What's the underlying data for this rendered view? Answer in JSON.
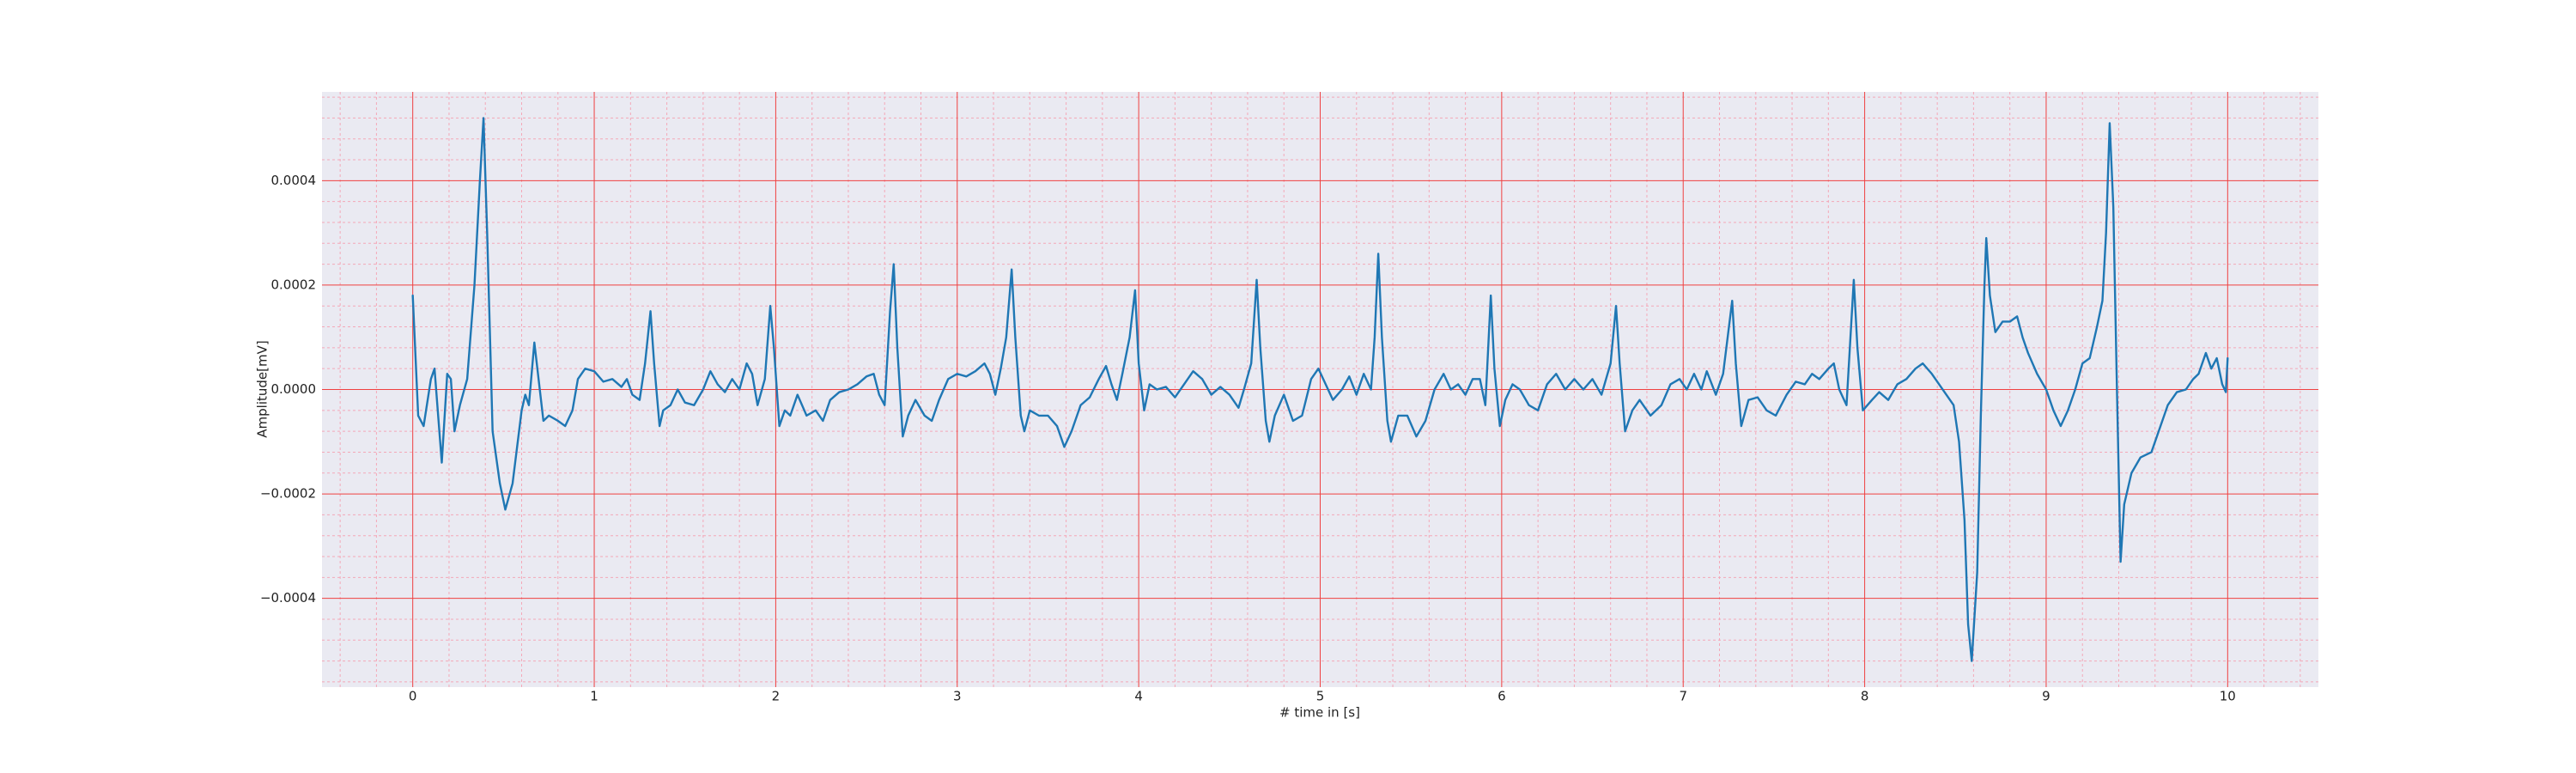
{
  "chart_data": {
    "type": "line",
    "xlabel": "# time in [s]",
    "ylabel": "Amplitude[mV]",
    "color": "#1f77b4",
    "background": "#eaeaf2",
    "grid_color": "#f04040",
    "minor_grid_color": "#f4a8b8",
    "grid": true,
    "minor_grid": true,
    "xlim": [
      -0.5,
      10.5
    ],
    "xticks": [
      0,
      1,
      2,
      3,
      4,
      5,
      6,
      7,
      8,
      9,
      10
    ],
    "ylim": [
      -0.00057,
      0.00057
    ],
    "yticks": [
      {
        "value": -0.0004,
        "label": "−0.0004"
      },
      {
        "value": -0.0002,
        "label": "−0.0002"
      },
      {
        "value": 0,
        "label": "0.0000"
      },
      0.0002,
      0.0004
    ],
    "x": [
      0,
      0.03,
      0.06,
      0.1,
      0.12,
      0.14,
      0.16,
      0.19,
      0.21,
      0.23,
      0.26,
      0.3,
      0.34,
      0.37,
      0.39,
      0.41,
      0.44,
      0.48,
      0.51,
      0.55,
      0.6,
      0.62,
      0.64,
      0.67,
      0.69,
      0.72,
      0.75,
      0.8,
      0.84,
      0.88,
      0.91,
      0.95,
      1,
      1.05,
      1.1,
      1.15,
      1.18,
      1.21,
      1.25,
      1.28,
      1.31,
      1.33,
      1.36,
      1.38,
      1.42,
      1.46,
      1.5,
      1.55,
      1.6,
      1.64,
      1.68,
      1.72,
      1.76,
      1.8,
      1.84,
      1.87,
      1.9,
      1.94,
      1.97,
      1.99,
      2.02,
      2.05,
      2.08,
      2.12,
      2.17,
      2.22,
      2.26,
      2.3,
      2.35,
      2.4,
      2.45,
      2.5,
      2.54,
      2.57,
      2.6,
      2.63,
      2.65,
      2.67,
      2.7,
      2.73,
      2.77,
      2.82,
      2.86,
      2.9,
      2.95,
      3,
      3.05,
      3.1,
      3.15,
      3.18,
      3.21,
      3.24,
      3.27,
      3.3,
      3.32,
      3.35,
      3.37,
      3.4,
      3.45,
      3.5,
      3.55,
      3.59,
      3.63,
      3.68,
      3.73,
      3.78,
      3.82,
      3.85,
      3.88,
      3.91,
      3.95,
      3.98,
      4,
      4.03,
      4.06,
      4.1,
      4.15,
      4.2,
      4.25,
      4.3,
      4.35,
      4.4,
      4.45,
      4.5,
      4.55,
      4.58,
      4.62,
      4.65,
      4.67,
      4.7,
      4.72,
      4.75,
      4.8,
      4.85,
      4.9,
      4.95,
      4.99,
      5.03,
      5.07,
      5.12,
      5.16,
      5.2,
      5.24,
      5.28,
      5.3,
      5.32,
      5.34,
      5.37,
      5.39,
      5.43,
      5.48,
      5.53,
      5.58,
      5.63,
      5.68,
      5.72,
      5.76,
      5.8,
      5.84,
      5.88,
      5.91,
      5.94,
      5.96,
      5.99,
      6.02,
      6.06,
      6.1,
      6.15,
      6.2,
      6.25,
      6.3,
      6.35,
      6.4,
      6.45,
      6.5,
      6.55,
      6.6,
      6.63,
      6.65,
      6.68,
      6.72,
      6.76,
      6.82,
      6.88,
      6.93,
      6.98,
      7.02,
      7.06,
      7.1,
      7.13,
      7.18,
      7.22,
      7.27,
      7.29,
      7.32,
      7.36,
      7.41,
      7.46,
      7.51,
      7.57,
      7.62,
      7.67,
      7.71,
      7.75,
      7.8,
      7.83,
      7.86,
      7.9,
      7.94,
      7.96,
      7.99,
      8.04,
      8.08,
      8.13,
      8.18,
      8.23,
      8.28,
      8.32,
      8.37,
      8.41,
      8.45,
      8.49,
      8.52,
      8.55,
      8.57,
      8.59,
      8.62,
      8.64,
      8.66,
      8.67,
      8.69,
      8.72,
      8.76,
      8.8,
      8.84,
      8.87,
      8.9,
      8.95,
      9,
      9.04,
      9.08,
      9.12,
      9.16,
      9.2,
      9.24,
      9.28,
      9.31,
      9.33,
      9.35,
      9.37,
      9.39,
      9.41,
      9.43,
      9.47,
      9.52,
      9.58,
      9.62,
      9.67,
      9.72,
      9.77,
      9.81,
      9.84,
      9.88,
      9.91,
      9.94,
      9.97,
      9.99,
      10
    ],
    "values": [
      0.00018,
      -5e-05,
      -7e-05,
      2e-05,
      4e-05,
      -5e-05,
      -0.00014,
      3e-05,
      2e-05,
      -8e-05,
      -3e-05,
      2e-05,
      0.0002,
      0.0004,
      0.00052,
      0.0003,
      -8e-05,
      -0.00018,
      -0.00023,
      -0.00018,
      -4e-05,
      -1e-05,
      -3e-05,
      9e-05,
      3e-05,
      -6e-05,
      -5e-05,
      -6e-05,
      -7e-05,
      -4e-05,
      2e-05,
      4e-05,
      3.5e-05,
      1.5e-05,
      2e-05,
      5e-06,
      2e-05,
      -1e-05,
      -2e-05,
      5e-05,
      0.00015,
      5e-05,
      -7e-05,
      -4e-05,
      -3e-05,
      0,
      -2.5e-05,
      -3e-05,
      0,
      3.5e-05,
      1e-05,
      -5e-06,
      2e-05,
      0,
      5e-05,
      3e-05,
      -3e-05,
      2e-05,
      0.00016,
      8e-05,
      -7e-05,
      -4e-05,
      -5e-05,
      -1e-05,
      -5e-05,
      -4e-05,
      -6e-05,
      -2e-05,
      -5e-06,
      0,
      1e-05,
      2.5e-05,
      3e-05,
      -1e-05,
      -3e-05,
      0.00015,
      0.00024,
      8e-05,
      -9e-05,
      -5e-05,
      -2e-05,
      -5e-05,
      -6e-05,
      -2e-05,
      2e-05,
      3e-05,
      2.5e-05,
      3.5e-05,
      5e-05,
      3e-05,
      -1e-05,
      4e-05,
      0.0001,
      0.00023,
      0.0001,
      -5e-05,
      -8e-05,
      -4e-05,
      -5e-05,
      -5e-05,
      -7e-05,
      -0.00011,
      -8e-05,
      -3e-05,
      -1.5e-05,
      2e-05,
      4.5e-05,
      1e-05,
      -2e-05,
      3e-05,
      0.0001,
      0.00019,
      5e-05,
      -4e-05,
      1e-05,
      0,
      5e-06,
      -1.5e-05,
      1e-05,
      3.5e-05,
      2e-05,
      -1e-05,
      5e-06,
      -1e-05,
      -3.5e-05,
      0,
      5e-05,
      0.00021,
      8e-05,
      -6e-05,
      -0.0001,
      -5e-05,
      -1e-05,
      -6e-05,
      -5e-05,
      2e-05,
      4e-05,
      1e-05,
      -2e-05,
      0,
      2.5e-05,
      -1e-05,
      3e-05,
      0,
      0.0001,
      0.00026,
      0.0001,
      -6e-05,
      -0.0001,
      -5e-05,
      -5e-05,
      -9e-05,
      -6e-05,
      0,
      3e-05,
      0,
      1e-05,
      -1e-05,
      2e-05,
      2e-05,
      -3e-05,
      0.00018,
      4e-05,
      -7e-05,
      -2e-05,
      1e-05,
      0,
      -3e-05,
      -4e-05,
      1e-05,
      3e-05,
      0,
      2e-05,
      0,
      2e-05,
      -1e-05,
      5e-05,
      0.00016,
      5e-05,
      -8e-05,
      -4e-05,
      -2e-05,
      -5e-05,
      -3e-05,
      1e-05,
      2e-05,
      0,
      3e-05,
      0,
      3.5e-05,
      -1e-05,
      3e-05,
      0.00017,
      5e-05,
      -7e-05,
      -2e-05,
      -1.5e-05,
      -4e-05,
      -5e-05,
      -1e-05,
      1.5e-05,
      1e-05,
      3e-05,
      2e-05,
      4e-05,
      5e-05,
      0,
      -3e-05,
      0.00021,
      8e-05,
      -4e-05,
      -2e-05,
      -5e-06,
      -2e-05,
      1e-05,
      2e-05,
      4e-05,
      5e-05,
      3e-05,
      1e-05,
      -1e-05,
      -3e-05,
      -0.0001,
      -0.00025,
      -0.00045,
      -0.00052,
      -0.00035,
      -5e-05,
      0.0002,
      0.00029,
      0.00018,
      0.00011,
      0.00013,
      0.00013,
      0.00014,
      0.0001,
      7e-05,
      3e-05,
      0,
      -4e-05,
      -7e-05,
      -4e-05,
      0,
      5e-05,
      6e-05,
      0.00012,
      0.00017,
      0.0003,
      0.00051,
      0.00035,
      0,
      -0.00033,
      -0.00022,
      -0.00016,
      -0.00013,
      -0.00012,
      -8e-05,
      -3e-05,
      -5e-06,
      0,
      2e-05,
      3e-05,
      7e-05,
      4e-05,
      6e-05,
      1e-05,
      -5e-06,
      6e-05
    ]
  }
}
